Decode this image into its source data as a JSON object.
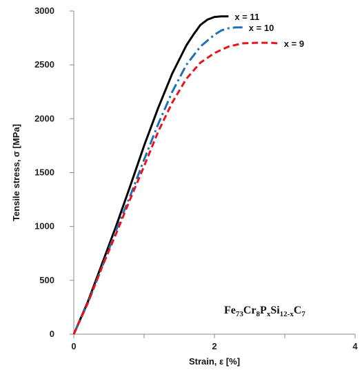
{
  "chart_data": {
    "type": "line",
    "title": "",
    "xlabel": "Strain, ε [%]",
    "ylabel": "Tensile stress, σ [MPa]",
    "xlim": [
      0,
      4
    ],
    "ylim": [
      0,
      3000
    ],
    "xticks": [
      0,
      2,
      4
    ],
    "yticks": [
      0,
      500,
      1000,
      1500,
      2000,
      2500,
      3000
    ],
    "grid": false,
    "annotation": {
      "parts": [
        {
          "text": "Fe",
          "sub": false
        },
        {
          "text": "73",
          "sub": true
        },
        {
          "text": "Cr",
          "sub": false
        },
        {
          "text": "8",
          "sub": true
        },
        {
          "text": "P",
          "sub": false
        },
        {
          "text": "x",
          "sub": true
        },
        {
          "text": "Si",
          "sub": false
        },
        {
          "text": "12-x",
          "sub": true
        },
        {
          "text": "C",
          "sub": false
        },
        {
          "text": "7",
          "sub": true
        }
      ]
    },
    "series": [
      {
        "name": "x = 11",
        "color": "#000000",
        "style": "solid",
        "x": [
          0.0,
          0.2,
          0.4,
          0.6,
          0.8,
          1.0,
          1.2,
          1.4,
          1.6,
          1.7,
          1.8,
          1.9,
          2.0,
          2.1,
          2.2
        ],
        "y": [
          0,
          300,
          650,
          1000,
          1370,
          1750,
          2100,
          2420,
          2680,
          2780,
          2870,
          2920,
          2945,
          2950,
          2950
        ]
      },
      {
        "name": "x = 10",
        "color": "#1f6fb5",
        "style": "dashdot",
        "x": [
          0.0,
          0.2,
          0.4,
          0.6,
          0.8,
          1.0,
          1.2,
          1.4,
          1.6,
          1.8,
          2.0,
          2.1,
          2.2,
          2.3,
          2.4
        ],
        "y": [
          0,
          290,
          620,
          960,
          1280,
          1620,
          1950,
          2250,
          2500,
          2670,
          2780,
          2820,
          2840,
          2848,
          2848
        ]
      },
      {
        "name": "x = 9",
        "color": "#e8141c",
        "style": "dashed",
        "x": [
          0.0,
          0.2,
          0.4,
          0.6,
          0.8,
          1.0,
          1.2,
          1.4,
          1.6,
          1.8,
          2.0,
          2.2,
          2.4,
          2.6,
          2.8,
          2.9
        ],
        "y": [
          0,
          290,
          620,
          930,
          1250,
          1560,
          1880,
          2150,
          2370,
          2520,
          2610,
          2670,
          2700,
          2705,
          2705,
          2700
        ]
      }
    ]
  }
}
